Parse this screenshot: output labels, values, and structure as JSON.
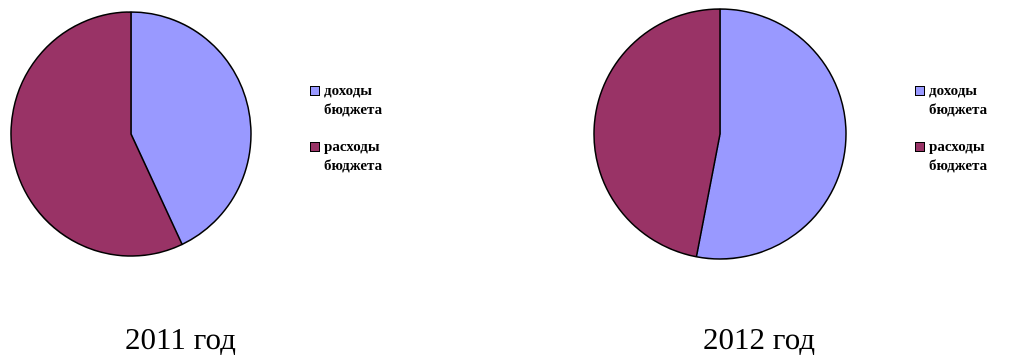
{
  "chart_data": [
    {
      "type": "pie",
      "caption": "2011 год",
      "labels": [
        "доходы бюджета",
        "расходы бюджета"
      ],
      "values": [
        43,
        57
      ],
      "colors": [
        "#9999ff",
        "#993366"
      ]
    },
    {
      "type": "pie",
      "caption": "2012 год",
      "labels": [
        "доходы бюджета",
        "расходы бюджета"
      ],
      "values": [
        53,
        47
      ],
      "colors": [
        "#9999ff",
        "#993366"
      ]
    }
  ]
}
